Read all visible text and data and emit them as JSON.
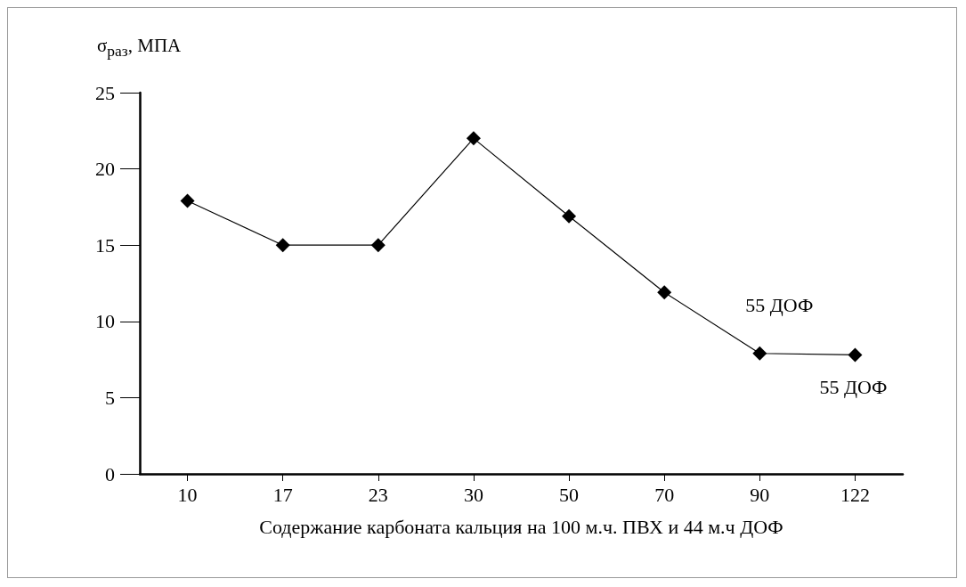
{
  "chart_data": {
    "type": "line",
    "ylabel": "σ$_{раз}$, МПА",
    "xlabel": "Содержание карбоната кальция на 100 м.ч. ПВХ и 44 м.ч ДОФ",
    "categories": [
      "10",
      "17",
      "23",
      "30",
      "50",
      "70",
      "90",
      "122"
    ],
    "series": [
      {
        "color": "#000000",
        "values": [
          17.9,
          15,
          15,
          22,
          16.9,
          11.9,
          7.9,
          7.8
        ]
      }
    ],
    "ylim": [
      0,
      25
    ],
    "yticks": [
      0,
      5,
      10,
      15,
      20,
      25
    ],
    "grid": false,
    "marker": "diamond",
    "line_style": "solid",
    "annotations": [
      {
        "text": "55 ДОФ",
        "x": "90",
        "y": 7.9
      },
      {
        "text": "55 ДОФ",
        "x": "122",
        "y": 7.8
      }
    ]
  }
}
